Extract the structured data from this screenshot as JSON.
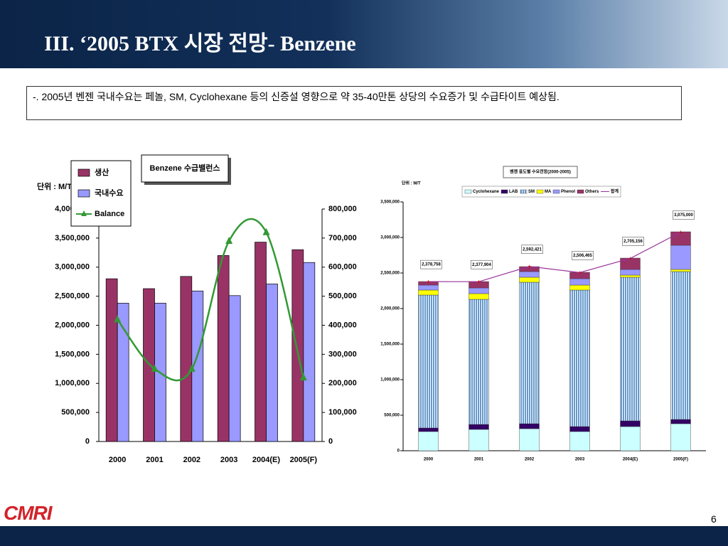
{
  "header": {
    "title": "III. ‘2005 BTX 시장 전망- Benzene"
  },
  "note": "-. 2005년 벤젠 국내수요는 페놀, SM, Cyclohexane 등의  신증설 영향으로 약 35-40만톤 상당의 수요증가 및 수급타이트 예상됨.",
  "chart_data": [
    {
      "type": "bar",
      "title": "Benzene 수급밸런스",
      "unit_label": "단위 : M/T",
      "categories": [
        "2000",
        "2001",
        "2002",
        "2003",
        "2004(E)",
        "2005(F)"
      ],
      "series": [
        {
          "name": "생산",
          "color": "#993366",
          "values": [
            2800000,
            2630000,
            2840000,
            3200000,
            3430000,
            3300000
          ]
        },
        {
          "name": "국내수요",
          "color": "#9999ff",
          "values": [
            2380000,
            2380000,
            2590000,
            2510000,
            2710000,
            3080000
          ]
        },
        {
          "name": "Balance",
          "color": "#339933",
          "type": "line",
          "axis": "y2",
          "values": [
            420000,
            250000,
            250000,
            690000,
            720000,
            220000
          ]
        }
      ],
      "ylim": [
        0,
        4000000
      ],
      "yticks": [
        0,
        {
          "value": 500000,
          "label": "500,000"
        },
        {
          "value": 1000000,
          "label": "1,000,000"
        },
        {
          "value": 1500000,
          "label": "1,500,000"
        },
        {
          "value": 2000000,
          "label": "2,000,000"
        },
        {
          "value": 2500000,
          "label": "2,500,000"
        },
        {
          "value": 3000000,
          "label": "3,000,000"
        },
        {
          "value": 3500000,
          "label": "3,500,000"
        },
        {
          "value": 4000000,
          "label": "4,000,000"
        }
      ],
      "y2lim": [
        0,
        800000
      ],
      "y2ticks": [
        0,
        {
          "value": 100000,
          "label": "100,000"
        },
        {
          "value": 200000,
          "label": "200,000"
        },
        {
          "value": 300000,
          "label": "300,000"
        },
        {
          "value": 400000,
          "label": "400,000"
        },
        {
          "value": 500000,
          "label": "500,000"
        },
        {
          "value": 600000,
          "label": "600,000"
        },
        {
          "value": 700000,
          "label": "700,000"
        },
        {
          "value": 800000,
          "label": "800,000"
        }
      ]
    },
    {
      "type": "stacked_bar",
      "title": "벤젠 용도별 수요전망(2000-2005)",
      "unit_label": "단위 : M/T",
      "categories": [
        "2000",
        "2001",
        "2002",
        "2003",
        "2004(E)",
        "2005(F)"
      ],
      "series": [
        {
          "name": "Cyclohexane",
          "color": "#ccffff",
          "values": [
            270000,
            300000,
            310000,
            270000,
            340000,
            380000
          ]
        },
        {
          "name": "LAB",
          "color": "#330066",
          "values": [
            50000,
            70000,
            70000,
            70000,
            80000,
            60000
          ]
        },
        {
          "name": "SM",
          "color": "#6699cc",
          "values": [
            1870000,
            1760000,
            1990000,
            1920000,
            2020000,
            2080000
          ]
        },
        {
          "name": "MA",
          "color": "#ffff00",
          "values": [
            70000,
            80000,
            70000,
            70000,
            30000,
            30000
          ]
        },
        {
          "name": "Phenol",
          "color": "#9999ff",
          "values": [
            70000,
            80000,
            80000,
            90000,
            80000,
            340000
          ]
        },
        {
          "name": "Others",
          "color": "#993366",
          "values": [
            50000,
            90000,
            70000,
            90000,
            160000,
            190000
          ]
        },
        {
          "name": "합계",
          "color": "#993399",
          "type": "line",
          "values": [
            2378758,
            2377904,
            2592421,
            2506465,
            2705156,
            3075000
          ],
          "value_labels": [
            "2,378,758",
            "2,377,904",
            "2,592,421",
            "2,506,465",
            "2,705,156",
            "3,075,000"
          ]
        }
      ],
      "ylim": [
        0,
        3500000
      ],
      "yticks": [
        0,
        {
          "value": 500000,
          "label": "500,000"
        },
        {
          "value": 1000000,
          "label": "1,000,000"
        },
        {
          "value": 1500000,
          "label": "1,500,000"
        },
        {
          "value": 2000000,
          "label": "2,000,000"
        },
        {
          "value": 2500000,
          "label": "2,500,000"
        },
        {
          "value": 3000000,
          "label": "3,000,000"
        },
        {
          "value": 3500000,
          "label": "3,500,000"
        }
      ]
    }
  ],
  "footer": {
    "logo": "CMRI",
    "page": "6"
  }
}
